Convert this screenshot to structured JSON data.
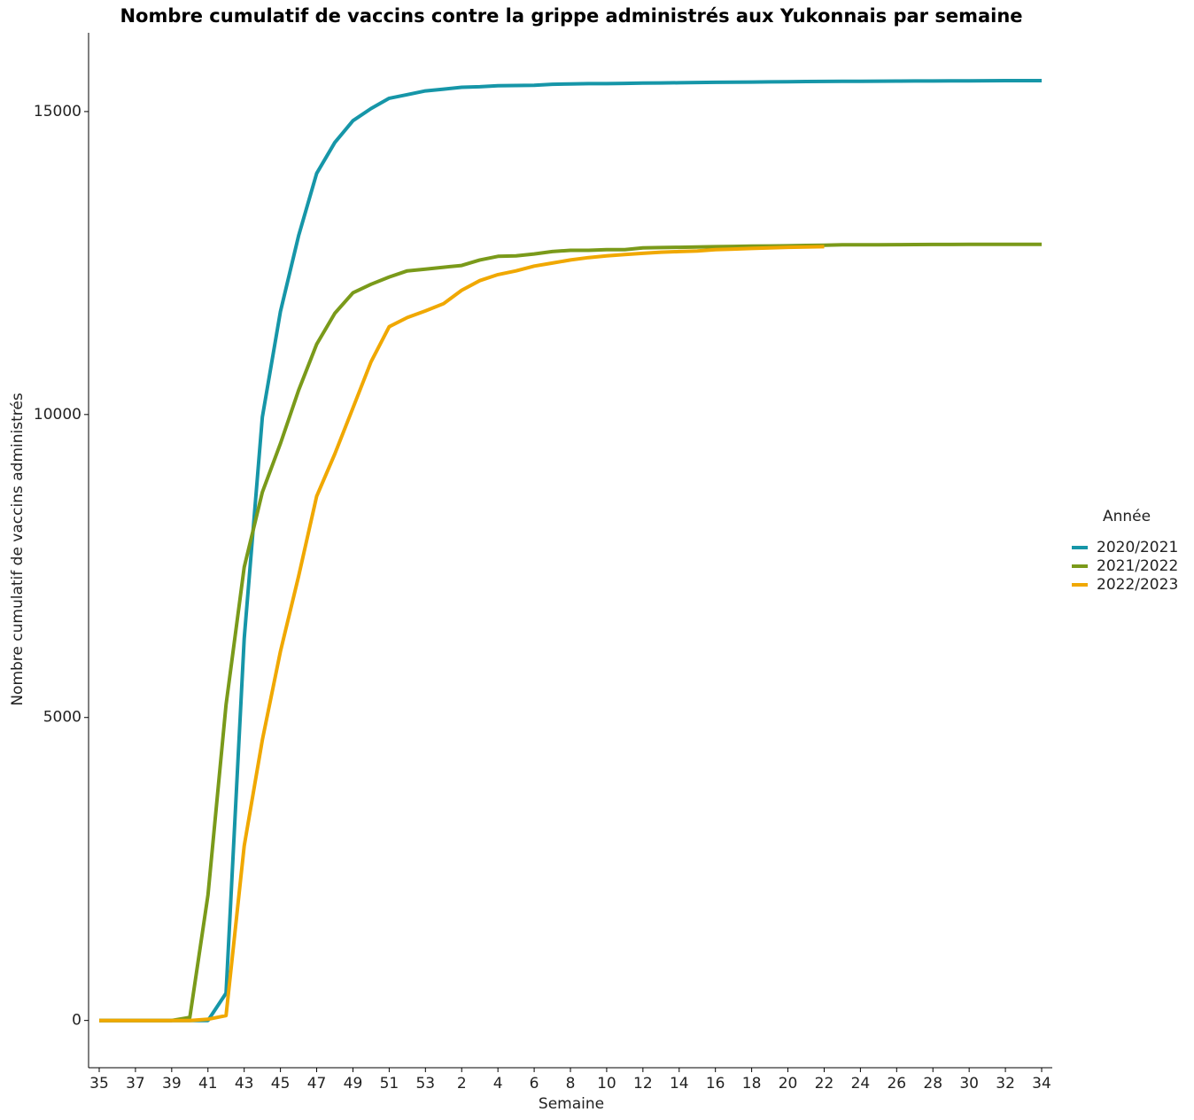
{
  "chart_data": {
    "type": "line",
    "title": "Nombre cumulatif de vaccins contre la grippe administrés aux Yukonnais par semaine",
    "xlabel": "Semaine",
    "ylabel": "Nombre cumulatif de vaccins administrés",
    "legend_title": "Année",
    "legend_position": "right",
    "grid": false,
    "categories": [
      "35",
      null,
      "37",
      null,
      "39",
      null,
      "41",
      null,
      "43",
      null,
      "45",
      null,
      "47",
      null,
      "49",
      null,
      "51",
      null,
      "53",
      null,
      "2",
      null,
      "4",
      null,
      "6",
      null,
      "8",
      null,
      "10",
      null,
      "12",
      null,
      "14",
      null,
      "16",
      null,
      "18",
      null,
      "20",
      null,
      "22",
      null,
      "24",
      null,
      "26",
      null,
      "28",
      null,
      "30",
      null,
      "32",
      null,
      "34"
    ],
    "ylim": [
      -780,
      16300
    ],
    "yticks": [
      0,
      5000,
      10000,
      15000
    ],
    "series": [
      {
        "name": "2020/2021",
        "color": "#1696a8",
        "values": [
          0,
          0,
          0,
          0,
          0,
          0,
          0,
          450,
          6300,
          9960,
          11700,
          12950,
          13980,
          14490,
          14850,
          15050,
          15220,
          15280,
          15340,
          15370,
          15400,
          15410,
          15425,
          15430,
          15435,
          15450,
          15455,
          15460,
          15460,
          15465,
          15470,
          15472,
          15475,
          15480,
          15482,
          15485,
          15487,
          15490,
          15492,
          15495,
          15497,
          15500,
          15500,
          15502,
          15503,
          15505,
          15505,
          15507,
          15508,
          15509,
          15510,
          15510,
          15510
        ]
      },
      {
        "name": "2021/2022",
        "color": "#7a9a1a",
        "values": [
          0,
          0,
          0,
          0,
          0,
          50,
          2070,
          5210,
          7480,
          8720,
          9520,
          10400,
          11160,
          11670,
          12010,
          12150,
          12270,
          12370,
          12400,
          12430,
          12460,
          12550,
          12610,
          12620,
          12650,
          12690,
          12710,
          12710,
          12720,
          12720,
          12750,
          12755,
          12760,
          12765,
          12770,
          12775,
          12780,
          12782,
          12785,
          12790,
          12795,
          12800,
          12800,
          12802,
          12804,
          12805,
          12806,
          12807,
          12808,
          12809,
          12810,
          12810,
          12810
        ]
      },
      {
        "name": "2022/2023",
        "color": "#f0a800",
        "values": [
          0,
          0,
          0,
          0,
          0,
          0,
          20,
          80,
          2880,
          4630,
          6090,
          7330,
          8650,
          9350,
          10110,
          10870,
          11450,
          11600,
          11710,
          11830,
          12050,
          12210,
          12310,
          12370,
          12450,
          12500,
          12550,
          12590,
          12620,
          12640,
          12660,
          12680,
          12690,
          12700,
          12720,
          12730,
          12740,
          12750,
          12760,
          12765,
          12770,
          null,
          null,
          null,
          null,
          null,
          null,
          null,
          null,
          null,
          null,
          null,
          null
        ]
      }
    ]
  }
}
